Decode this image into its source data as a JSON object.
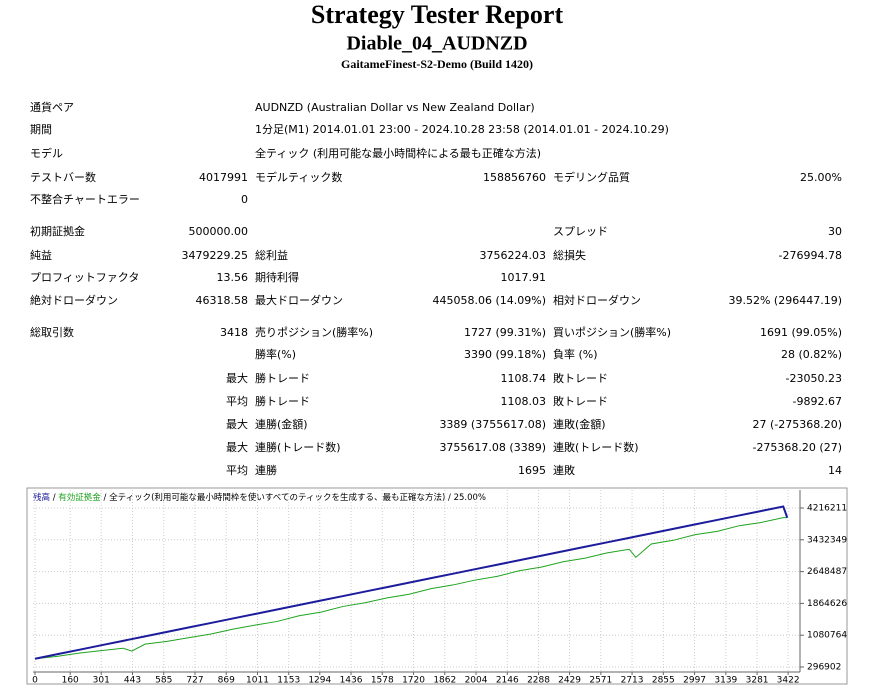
{
  "header": {
    "title": "Strategy Tester Report",
    "subtitle": "Diable_04_AUDNZD",
    "server": "GaitameFinest-S2-Demo (Build 1420)"
  },
  "table": {
    "rows": [
      {
        "label": "通貨ペア",
        "wide": "AUDNZD (Australian Dollar vs New Zealand Dollar)"
      },
      {
        "label": "期間",
        "wide": "1分足(M1) 2014.01.01 23:00 - 2024.10.28 23:58 (2014.01.01 - 2024.10.29)"
      },
      {
        "label": "モデル",
        "wide": "全ティック (利用可能な最小時間枠による最も正確な方法)"
      },
      {
        "label": "テストバー数",
        "value": "4017991",
        "label2": "モデルティック数",
        "value2": "158856760",
        "label3": "モデリング品質",
        "value3": "25.00%"
      },
      {
        "label": "不整合チャートエラー",
        "value": "0"
      },
      {
        "label": "初期証拠金",
        "value": "500000.00",
        "label3": "スプレッド",
        "value3": "30"
      },
      {
        "label": "純益",
        "value": "3479229.25",
        "label2": "総利益",
        "value2": "3756224.03",
        "label3": "総損失",
        "value3": "-276994.78"
      },
      {
        "label": "プロフィットファクタ",
        "value": "13.56",
        "label2": "期待利得",
        "value2": "1017.91"
      },
      {
        "label": "絶対ドローダウン",
        "value": "46318.58",
        "label2": "最大ドローダウン",
        "value2": "445058.06 (14.09%)",
        "label3": "相対ドローダウン",
        "value3": "39.52% (296447.19)"
      },
      {
        "label": "総取引数",
        "value": "3418",
        "label2": "売りポジション(勝率%)",
        "value2": "1727 (99.31%)",
        "label3": "買いポジション(勝率%)",
        "value3": "1691 (99.05%)"
      },
      {
        "label2": "勝率(%)",
        "value2": "3390 (99.18%)",
        "label3": "負率 (%)",
        "value3": "28 (0.82%)"
      },
      {
        "prefix": "最大",
        "label2": "勝トレード",
        "value2": "1108.74",
        "label3": "敗トレード",
        "value3": "-23050.23"
      },
      {
        "prefix": "平均",
        "label2": "勝トレード",
        "value2": "1108.03",
        "label3": "敗トレード",
        "value3": "-9892.67"
      },
      {
        "prefix": "最大",
        "label2": "連勝(金額)",
        "value2": "3389 (3755617.08)",
        "label3": "連敗(金額)",
        "value3": "27 (-275368.20)"
      },
      {
        "prefix": "最大",
        "label2": "連勝(トレード数)",
        "value2": "3755617.08 (3389)",
        "label3": "連敗(トレード数)",
        "value3": "-275368.20 (27)"
      },
      {
        "prefix": "平均",
        "label2": "連勝",
        "value2": "1695",
        "label3": "連敗",
        "value3": "14"
      }
    ]
  },
  "chart_data": {
    "type": "line",
    "legend_separator": "/",
    "legend_note": "全ティック(利用可能な最小時間枠を使いすべてのティックを生成する、最も正確な方法)",
    "quality": "25.00%",
    "x": [
      0,
      100,
      200,
      300,
      400,
      440,
      500,
      600,
      700,
      800,
      900,
      1000,
      1100,
      1200,
      1300,
      1400,
      1500,
      1600,
      1700,
      1800,
      1900,
      2000,
      2100,
      2200,
      2300,
      2400,
      2500,
      2600,
      2700,
      2730,
      2800,
      2900,
      3000,
      3100,
      3200,
      3300,
      3400,
      3418
    ],
    "series": [
      {
        "name": "残高",
        "color": "#1c1c9c",
        "values": [
          500000,
          610400,
          720800,
          831200,
          941600,
          985760,
          1052000,
          1162400,
          1272800,
          1383200,
          1493600,
          1604000,
          1714400,
          1824800,
          1935200,
          2045600,
          2156000,
          2266400,
          2376800,
          2487200,
          2597600,
          2708000,
          2818400,
          2928800,
          3039200,
          3149600,
          3260000,
          3370400,
          3480800,
          3513920,
          3591200,
          3701600,
          3812000,
          3922400,
          4032800,
          4143200,
          4253600,
          3979229
        ]
      },
      {
        "name": "有効証拠金",
        "color": "#1fa31f",
        "values": [
          500000,
          560000,
          640000,
          700000,
          760000,
          690000,
          860000,
          930000,
          1020000,
          1110000,
          1230000,
          1330000,
          1420000,
          1560000,
          1650000,
          1790000,
          1880000,
          2000000,
          2090000,
          2230000,
          2320000,
          2440000,
          2530000,
          2670000,
          2760000,
          2890000,
          2980000,
          3110000,
          3200000,
          3000000,
          3330000,
          3420000,
          3560000,
          3640000,
          3780000,
          3860000,
          3980000,
          3979229
        ]
      }
    ],
    "xlim": [
      -9,
      3476
    ],
    "ylim": [
      173650,
      4660000
    ],
    "xticks": [
      0,
      160,
      301,
      443,
      585,
      727,
      869,
      1011,
      1153,
      1294,
      1436,
      1578,
      1720,
      1862,
      2004,
      2146,
      2288,
      2429,
      2571,
      2713,
      2855,
      2997,
      3139,
      3281,
      3422
    ],
    "yticks": [
      296902,
      1080764,
      1864626,
      2648487,
      3432349,
      4216211
    ],
    "grid": true
  }
}
